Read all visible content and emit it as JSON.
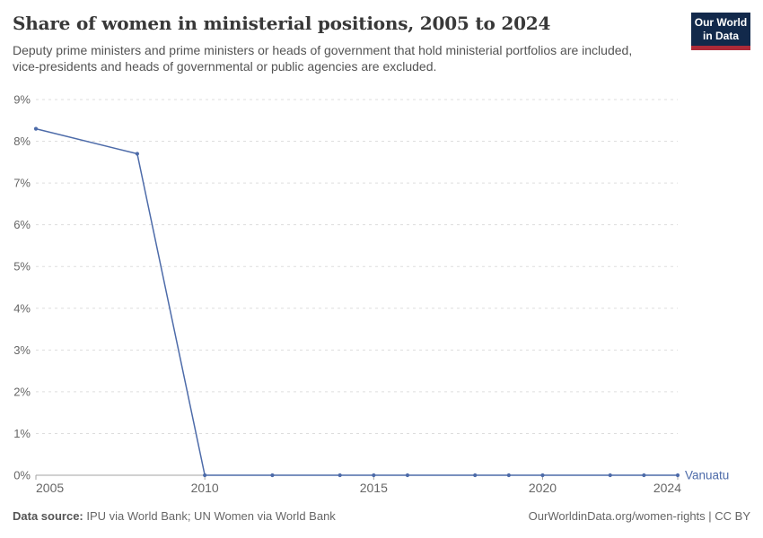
{
  "header": {
    "title": "Share of women in ministerial positions, 2005 to 2024",
    "subtitle": "Deputy prime ministers and prime ministers or heads of government that hold ministerial portfolios are included, vice-presidents and heads of governmental or public agencies are excluded.",
    "logo": {
      "line1": "Our World",
      "line2": "in Data"
    }
  },
  "chart_data": {
    "type": "line",
    "title": "Share of women in ministerial positions, 2005 to 2024",
    "xlabel": "",
    "ylabel": "",
    "xlim": [
      2005,
      2024
    ],
    "ylim": [
      0,
      9
    ],
    "yticks": [
      0,
      1,
      2,
      3,
      4,
      5,
      6,
      7,
      8,
      9
    ],
    "ytick_suffix": "%",
    "xticks": [
      2005,
      2010,
      2015,
      2020,
      2024
    ],
    "grid": "horizontal-dashed",
    "legend_position": "end-of-line",
    "series": [
      {
        "name": "Vanuatu",
        "color": "#4D6BA9",
        "points": [
          [
            2005,
            8.3
          ],
          [
            2008,
            7.7
          ],
          [
            2010,
            0
          ],
          [
            2012,
            0
          ],
          [
            2014,
            0
          ],
          [
            2015,
            0
          ],
          [
            2016,
            0
          ],
          [
            2018,
            0
          ],
          [
            2019,
            0
          ],
          [
            2020,
            0
          ],
          [
            2022,
            0
          ],
          [
            2023,
            0
          ],
          [
            2024,
            0
          ]
        ]
      }
    ]
  },
  "footer": {
    "source_label": "Data source:",
    "source_text": " IPU via World Bank; UN Women via World Bank",
    "right_text": "OurWorldinData.org/women-rights | CC BY"
  },
  "colors": {
    "line": "#4D6BA9",
    "grid": "#dddddd",
    "axis": "#a3a3a3",
    "tick_label": "#666666",
    "title": "#383838",
    "subtitle": "#535353",
    "logo_bg": "#12294B",
    "logo_stripe": "#AD2A38",
    "entity_label": "#4D6BA9"
  }
}
